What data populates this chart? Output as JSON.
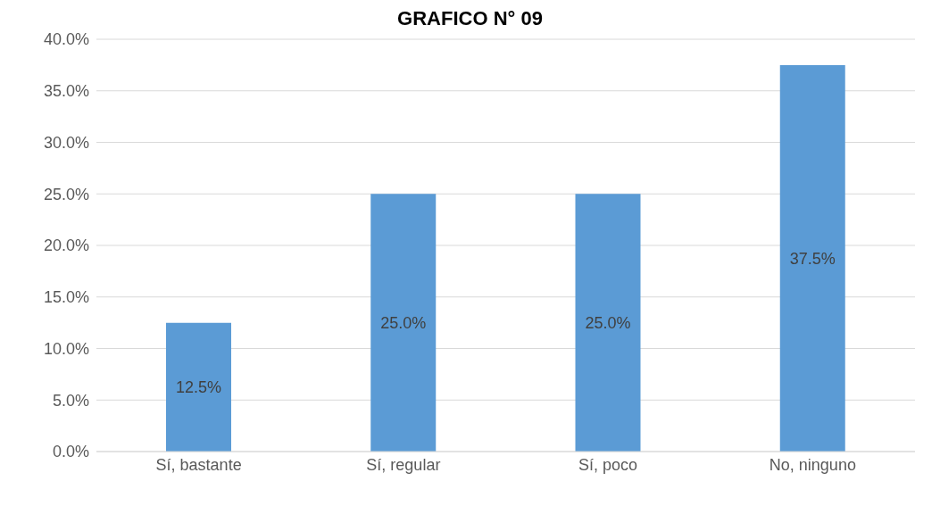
{
  "chart_data": {
    "type": "bar",
    "title": "GRAFICO N° 09",
    "categories": [
      "Sí, bastante",
      "Sí, regular",
      "Sí, poco",
      "No, ninguno"
    ],
    "values": [
      12.5,
      25.0,
      25.0,
      37.5
    ],
    "color": "#5b9bd5",
    "value_labels": [
      "12.5%",
      "25.0%",
      "25.0%",
      "37.5%"
    ],
    "ylim": [
      0,
      40
    ],
    "yticks": [
      {
        "value": 0,
        "label": "0.0%"
      },
      {
        "value": 5,
        "label": "5.0%"
      },
      {
        "value": 10,
        "label": "10.0%"
      },
      {
        "value": 15,
        "label": "15.0%"
      },
      {
        "value": 20,
        "label": "20.0%"
      },
      {
        "value": 25,
        "label": "25.0%"
      },
      {
        "value": 30,
        "label": "30.0%"
      },
      {
        "value": 35,
        "label": "35.0%"
      },
      {
        "value": 40,
        "label": "40.0%"
      }
    ],
    "grid": "y",
    "legend": false
  }
}
